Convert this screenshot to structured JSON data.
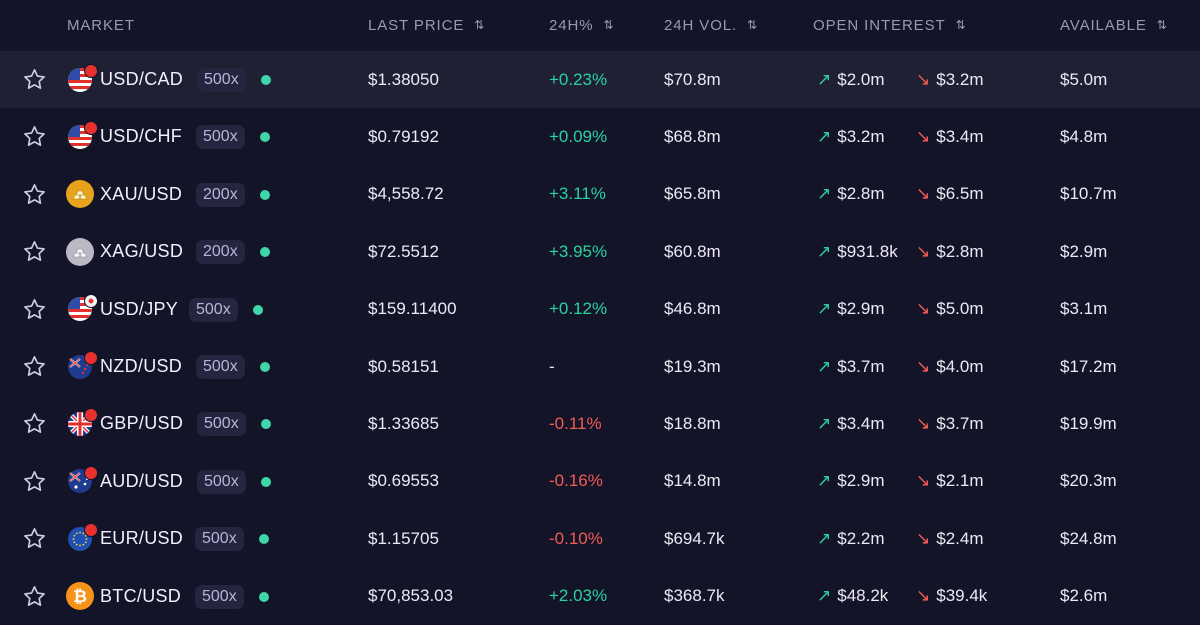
{
  "columns": {
    "market": "MARKET",
    "last_price": "LAST PRICE",
    "change_24h": "24H%",
    "volume_24h": "24H VOL.",
    "open_interest": "OPEN INTEREST",
    "available": "AVAILABLE"
  },
  "sort_icon": "⇅",
  "colors": {
    "background": "#131427",
    "highlight_row": "#1f2033",
    "positive": "#2ad29e",
    "negative": "#f25b57",
    "status_dot": "#3fd6a8",
    "header_text": "#9b97b8"
  },
  "rows": [
    {
      "symbol": "USD/CAD",
      "leverage": "500x",
      "price": "$1.38050",
      "change": "+0.23%",
      "change_dir": "pos",
      "volume": "$70.8m",
      "oi_long": "$2.0m",
      "oi_short": "$3.2m",
      "available": "$5.0m",
      "icon": "us-flag-icon",
      "badge_color": "#e8312f",
      "highlighted": true
    },
    {
      "symbol": "USD/CHF",
      "leverage": "500x",
      "price": "$0.79192",
      "change": "+0.09%",
      "change_dir": "pos",
      "volume": "$68.8m",
      "oi_long": "$3.2m",
      "oi_short": "$3.4m",
      "available": "$4.8m",
      "icon": "us-flag-icon",
      "badge_color": "#e8312f",
      "highlighted": false
    },
    {
      "symbol": "XAU/USD",
      "leverage": "200x",
      "price": "$4,558.72",
      "change": "+3.11%",
      "change_dir": "pos",
      "volume": "$65.8m",
      "oi_long": "$2.8m",
      "oi_short": "$6.5m",
      "available": "$10.7m",
      "icon": "gold-icon",
      "badge_color": "",
      "highlighted": false
    },
    {
      "symbol": "XAG/USD",
      "leverage": "200x",
      "price": "$72.5512",
      "change": "+3.95%",
      "change_dir": "pos",
      "volume": "$60.8m",
      "oi_long": "$931.8k",
      "oi_short": "$2.8m",
      "available": "$2.9m",
      "icon": "silver-icon",
      "badge_color": "",
      "highlighted": false
    },
    {
      "symbol": "USD/JPY",
      "leverage": "500x",
      "price": "$159.11400",
      "change": "+0.12%",
      "change_dir": "pos",
      "volume": "$46.8m",
      "oi_long": "$2.9m",
      "oi_short": "$5.0m",
      "available": "$3.1m",
      "icon": "us-flag-icon",
      "badge_color": "#f4f4f4",
      "highlighted": false
    },
    {
      "symbol": "NZD/USD",
      "leverage": "500x",
      "price": "$0.58151",
      "change": "-",
      "change_dir": "neu",
      "volume": "$19.3m",
      "oi_long": "$3.7m",
      "oi_short": "$4.0m",
      "available": "$17.2m",
      "icon": "nz-flag-icon",
      "badge_color": "#e8312f",
      "highlighted": false
    },
    {
      "symbol": "GBP/USD",
      "leverage": "500x",
      "price": "$1.33685",
      "change": "-0.11%",
      "change_dir": "neg",
      "volume": "$18.8m",
      "oi_long": "$3.4m",
      "oi_short": "$3.7m",
      "available": "$19.9m",
      "icon": "uk-flag-icon",
      "badge_color": "#e8312f",
      "highlighted": false
    },
    {
      "symbol": "AUD/USD",
      "leverage": "500x",
      "price": "$0.69553",
      "change": "-0.16%",
      "change_dir": "neg",
      "volume": "$14.8m",
      "oi_long": "$2.9m",
      "oi_short": "$2.1m",
      "available": "$20.3m",
      "icon": "au-flag-icon",
      "badge_color": "#e8312f",
      "highlighted": false
    },
    {
      "symbol": "EUR/USD",
      "leverage": "500x",
      "price": "$1.15705",
      "change": "-0.10%",
      "change_dir": "neg",
      "volume": "$694.7k",
      "oi_long": "$2.2m",
      "oi_short": "$2.4m",
      "available": "$24.8m",
      "icon": "eu-flag-icon",
      "badge_color": "#e8312f",
      "highlighted": false
    },
    {
      "symbol": "BTC/USD",
      "leverage": "500x",
      "price": "$70,853.03",
      "change": "+2.03%",
      "change_dir": "pos",
      "volume": "$368.7k",
      "oi_long": "$48.2k",
      "oi_short": "$39.4k",
      "available": "$2.6m",
      "icon": "bitcoin-icon",
      "badge_color": "",
      "highlighted": false
    }
  ]
}
